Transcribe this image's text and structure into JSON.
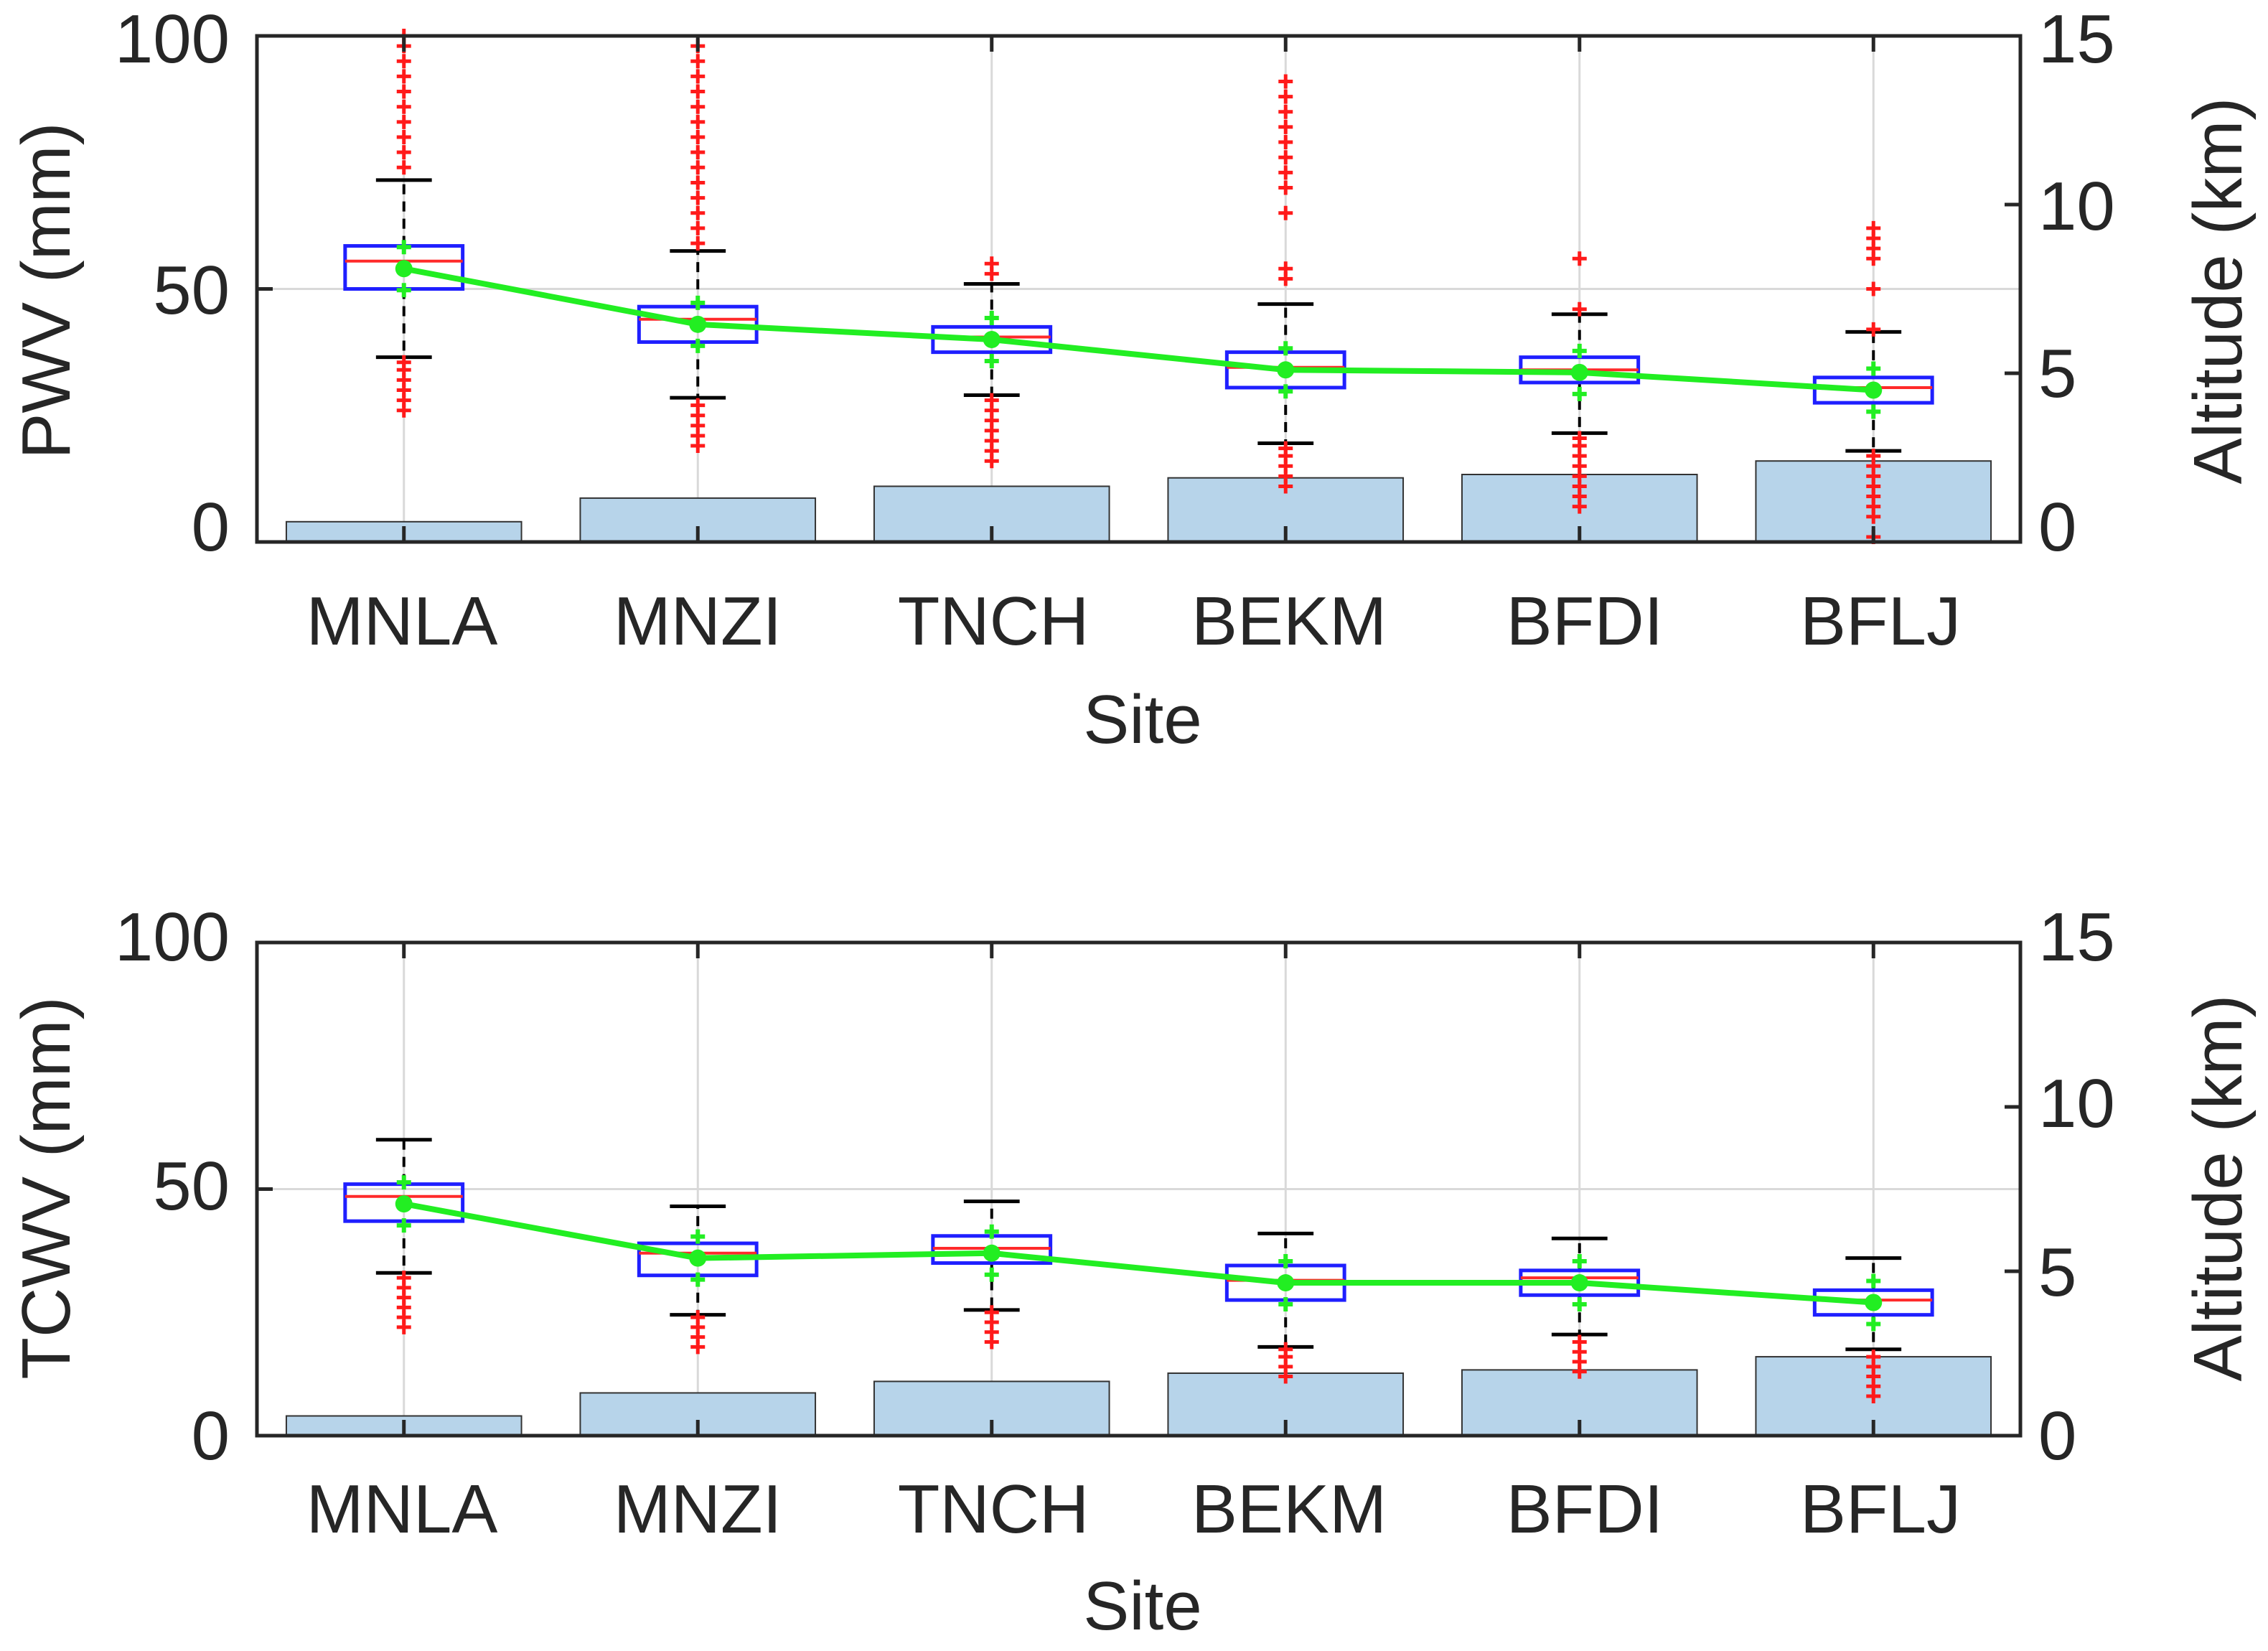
{
  "chart_data": [
    {
      "type": "box+bar",
      "panel": "top",
      "xlabel": "Site",
      "ylabel_left": "PWV (mm)",
      "ylabel_right": "Altitude (km)",
      "ylim_left": [
        0,
        100
      ],
      "ylim_right": [
        0,
        15
      ],
      "yticks_left": [
        "0",
        "50",
        "100"
      ],
      "yticks_right": [
        "0",
        "5",
        "10",
        "15"
      ],
      "grid": true,
      "categories": [
        "MNLA",
        "MNZI",
        "TNCH",
        "BEKM",
        "BFDI",
        "BFLJ"
      ],
      "altitude_km": [
        0.6,
        1.3,
        1.65,
        1.9,
        2.0,
        2.4
      ],
      "boxes": [
        {
          "site": "MNLA",
          "whisker_low": 36.5,
          "q1": 50,
          "median": 55.5,
          "q3": 58.5,
          "whisker_high": 71.5,
          "mean": 54,
          "outliers_low": [
            26,
            28,
            30,
            32,
            34,
            35.5
          ],
          "outliers_high": [
            74,
            77,
            80,
            83,
            86,
            89,
            92,
            95,
            98,
            100
          ]
        },
        {
          "site": "MNZI",
          "whisker_low": 28.5,
          "q1": 39.5,
          "median": 44,
          "q3": 46.5,
          "whisker_high": 57.5,
          "mean": 43,
          "outliers_low": [
            19,
            21,
            23,
            25,
            27
          ],
          "outliers_high": [
            59,
            62,
            65,
            68,
            71,
            74,
            77,
            80,
            83,
            86,
            89,
            92,
            95,
            98
          ]
        },
        {
          "site": "TNCH",
          "whisker_low": 29,
          "q1": 37.5,
          "median": 40.5,
          "q3": 42.5,
          "whisker_high": 51,
          "mean": 40,
          "outliers_low": [
            16,
            18,
            20,
            22,
            24,
            26,
            28
          ],
          "outliers_high": [
            53,
            55
          ]
        },
        {
          "site": "BEKM",
          "whisker_low": 19.5,
          "q1": 30.5,
          "median": 34.5,
          "q3": 37.5,
          "whisker_high": 47,
          "mean": 34,
          "outliers_low": [
            11,
            13,
            15,
            17,
            18.5
          ],
          "outliers_high": [
            52,
            54,
            65,
            70,
            73,
            76,
            79,
            82,
            85,
            88,
            91
          ]
        },
        {
          "site": "BFDI",
          "whisker_low": 21.5,
          "q1": 31.5,
          "median": 34,
          "q3": 36.5,
          "whisker_high": 45,
          "mean": 33.5,
          "outliers_low": [
            7,
            9,
            11,
            13,
            15,
            17,
            19,
            20.5
          ],
          "outliers_high": [
            46,
            56
          ]
        },
        {
          "site": "BFLJ",
          "whisker_low": 18,
          "q1": 27.5,
          "median": 30.5,
          "q3": 32.5,
          "whisker_high": 41.5,
          "mean": 30,
          "outliers_low": [
            1,
            5,
            7,
            9,
            11,
            13,
            15,
            17
          ],
          "outliers_high": [
            42,
            50,
            56,
            58,
            60,
            62
          ]
        }
      ],
      "green_line": [
        54,
        43,
        40,
        34,
        33.5,
        30
      ]
    },
    {
      "type": "box+bar",
      "panel": "bottom",
      "xlabel": "Site",
      "ylabel_left": "TCWV (mm)",
      "ylabel_right": "Altitude (km)",
      "ylim_left": [
        0,
        100
      ],
      "ylim_right": [
        0,
        15
      ],
      "yticks_left": [
        "0",
        "50",
        "100"
      ],
      "yticks_right": [
        "0",
        "5",
        "10",
        "15"
      ],
      "grid": true,
      "categories": [
        "MNLA",
        "MNZI",
        "TNCH",
        "BEKM",
        "BFDI",
        "BFLJ"
      ],
      "altitude_km": [
        0.6,
        1.3,
        1.65,
        1.9,
        2.0,
        2.4
      ],
      "boxes": [
        {
          "site": "MNLA",
          "whisker_low": 33,
          "q1": 43.5,
          "median": 48.5,
          "q3": 51,
          "whisker_high": 60,
          "mean": 47,
          "outliers_low": [
            22,
            24,
            26,
            28,
            30,
            32
          ]
        },
        {
          "site": "MNZI",
          "whisker_low": 24.5,
          "q1": 32.5,
          "median": 37,
          "q3": 39,
          "whisker_high": 46.5,
          "mean": 36,
          "outliers_low": [
            18,
            20,
            22,
            24
          ]
        },
        {
          "site": "TNCH",
          "whisker_low": 25.5,
          "q1": 35,
          "median": 38,
          "q3": 40.5,
          "whisker_high": 47.5,
          "mean": 37,
          "outliers_low": [
            19,
            21,
            23,
            25
          ]
        },
        {
          "site": "BEKM",
          "whisker_low": 18,
          "q1": 27.5,
          "median": 31.5,
          "q3": 34.5,
          "whisker_high": 41,
          "mean": 31,
          "outliers_low": [
            12,
            14,
            16,
            17.5
          ]
        },
        {
          "site": "BFDI",
          "whisker_low": 20.5,
          "q1": 28.5,
          "median": 32,
          "q3": 33.5,
          "whisker_high": 40,
          "mean": 31,
          "outliers_low": [
            13,
            15,
            17,
            19
          ]
        },
        {
          "site": "BFLJ",
          "whisker_low": 17.5,
          "q1": 24.5,
          "median": 27.5,
          "q3": 29.5,
          "whisker_high": 36,
          "mean": 27,
          "outliers_low": [
            8,
            10,
            12,
            14,
            16
          ]
        }
      ],
      "green_line": [
        47,
        36,
        37,
        31,
        31,
        27
      ]
    }
  ],
  "colors": {
    "altitude_bar_fill": "#b7d4ea",
    "altitude_bar_stroke": "#333333",
    "box": "#1f1fff",
    "median": "#ff2a2a",
    "outlier": "#ff1a1a",
    "green_line": "#22ee22",
    "axis": "#262626",
    "grid": "#d9d9d9",
    "whisker": "#000000"
  }
}
